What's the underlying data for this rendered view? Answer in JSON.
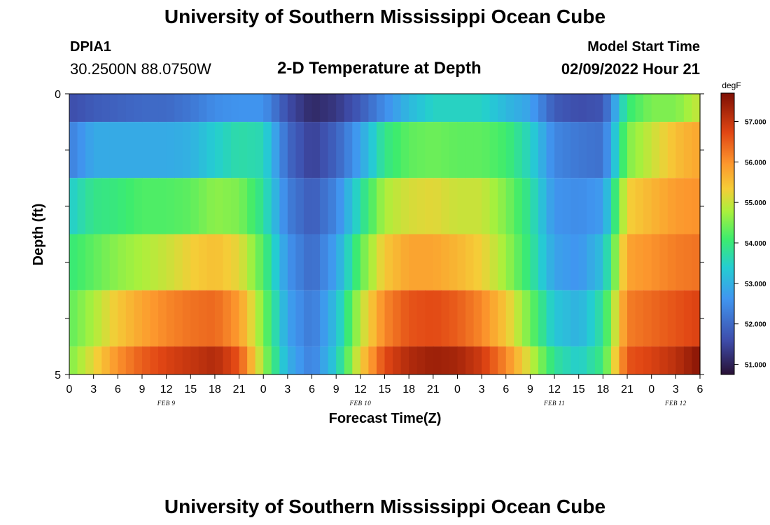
{
  "page": {
    "title": "University of Southern Mississippi Ocean Cube",
    "footer_title": "University of Southern Mississippi Ocean Cube",
    "station_id": "DPIA1",
    "station_coords": "30.2500N  88.0750W",
    "model_start_label": "Model Start Time",
    "model_start_value": "02/09/2022 Hour 21"
  },
  "chart_data": {
    "type": "heatmap",
    "title": "2-D Temperature at Depth",
    "xlabel": "Forecast Time(Z)",
    "ylabel": "Depth (ft)",
    "ylim": [
      0,
      5
    ],
    "y_tick_labels": [
      "0",
      "5"
    ],
    "x_tick_labels": [
      "0",
      "3",
      "6",
      "9",
      "12",
      "15",
      "18",
      "21",
      "0",
      "3",
      "6",
      "9",
      "12",
      "15",
      "18",
      "21",
      "0",
      "3",
      "6",
      "9",
      "12",
      "15",
      "18",
      "21",
      "0",
      "3",
      "6"
    ],
    "x_hours": [
      0,
      3,
      6,
      9,
      12,
      15,
      18,
      21,
      24,
      27,
      30,
      33,
      36,
      39,
      42,
      45,
      48,
      51,
      54,
      57,
      60,
      63,
      66,
      69,
      72,
      75,
      78
    ],
    "date_labels": [
      {
        "label": "FEB 9",
        "hour": 12
      },
      {
        "label": "FEB 10",
        "hour": 36
      },
      {
        "label": "FEB 11",
        "hour": 60
      },
      {
        "label": "FEB 12",
        "hour": 75
      }
    ],
    "depth_levels": [
      0,
      1,
      2,
      3,
      4,
      5
    ],
    "time_hours": [
      0,
      3,
      6,
      9,
      12,
      15,
      18,
      21,
      24,
      27,
      30,
      33,
      36,
      39,
      42,
      45,
      48,
      51,
      54,
      57,
      60,
      63,
      66,
      69,
      72,
      75,
      78
    ],
    "values": [
      [
        51.6,
        51.8,
        51.9,
        52.0,
        52.0,
        52.2,
        52.5,
        52.6,
        52.6,
        51.6,
        51.1,
        51.3,
        51.8,
        52.5,
        53.1,
        53.5,
        53.5,
        53.5,
        53.1,
        52.8,
        51.8,
        51.6,
        51.7,
        54.0,
        54.5,
        54.5,
        55.0
      ],
      [
        52.3,
        52.9,
        52.9,
        52.9,
        52.9,
        53.0,
        53.4,
        53.7,
        53.6,
        52.0,
        51.4,
        51.9,
        52.8,
        53.9,
        54.3,
        54.4,
        54.3,
        54.3,
        54.1,
        53.5,
        52.4,
        52.2,
        52.1,
        54.5,
        55.0,
        55.5,
        55.8
      ],
      [
        53.4,
        53.9,
        54.0,
        54.2,
        54.2,
        54.3,
        54.6,
        54.5,
        53.8,
        52.3,
        51.8,
        52.4,
        53.7,
        54.8,
        55.1,
        55.2,
        55.0,
        55.0,
        54.5,
        53.8,
        52.6,
        52.5,
        52.7,
        55.3,
        55.6,
        55.9,
        56.0
      ],
      [
        54.0,
        54.3,
        54.6,
        54.8,
        55.0,
        55.3,
        55.5,
        55.2,
        54.2,
        52.6,
        52.0,
        52.8,
        54.3,
        55.4,
        55.8,
        55.8,
        55.6,
        55.3,
        54.7,
        53.9,
        52.8,
        52.6,
        53.2,
        55.8,
        56.0,
        56.2,
        56.3
      ],
      [
        54.3,
        54.8,
        55.4,
        55.8,
        56.1,
        56.3,
        56.4,
        55.9,
        54.5,
        52.8,
        52.2,
        53.2,
        54.9,
        56.1,
        56.6,
        56.7,
        56.5,
        56.1,
        55.4,
        54.4,
        53.3,
        53.0,
        53.8,
        56.2,
        56.4,
        56.6,
        56.8
      ],
      [
        54.5,
        55.2,
        56.0,
        56.5,
        56.8,
        57.0,
        57.2,
        56.6,
        54.7,
        53.0,
        52.3,
        53.4,
        55.3,
        56.7,
        57.2,
        57.4,
        57.3,
        56.9,
        56.1,
        55.0,
        53.8,
        53.4,
        54.0,
        56.6,
        56.8,
        57.1,
        57.6
      ]
    ],
    "colorbar": {
      "unit": "degF",
      "min": 50.75,
      "max": 57.7,
      "tick_values": [
        51,
        52,
        53,
        54,
        55,
        56,
        57
      ],
      "tick_labels": [
        "51.000",
        "52.000",
        "53.000",
        "54.000",
        "55.000",
        "56.000",
        "57.000"
      ]
    }
  }
}
